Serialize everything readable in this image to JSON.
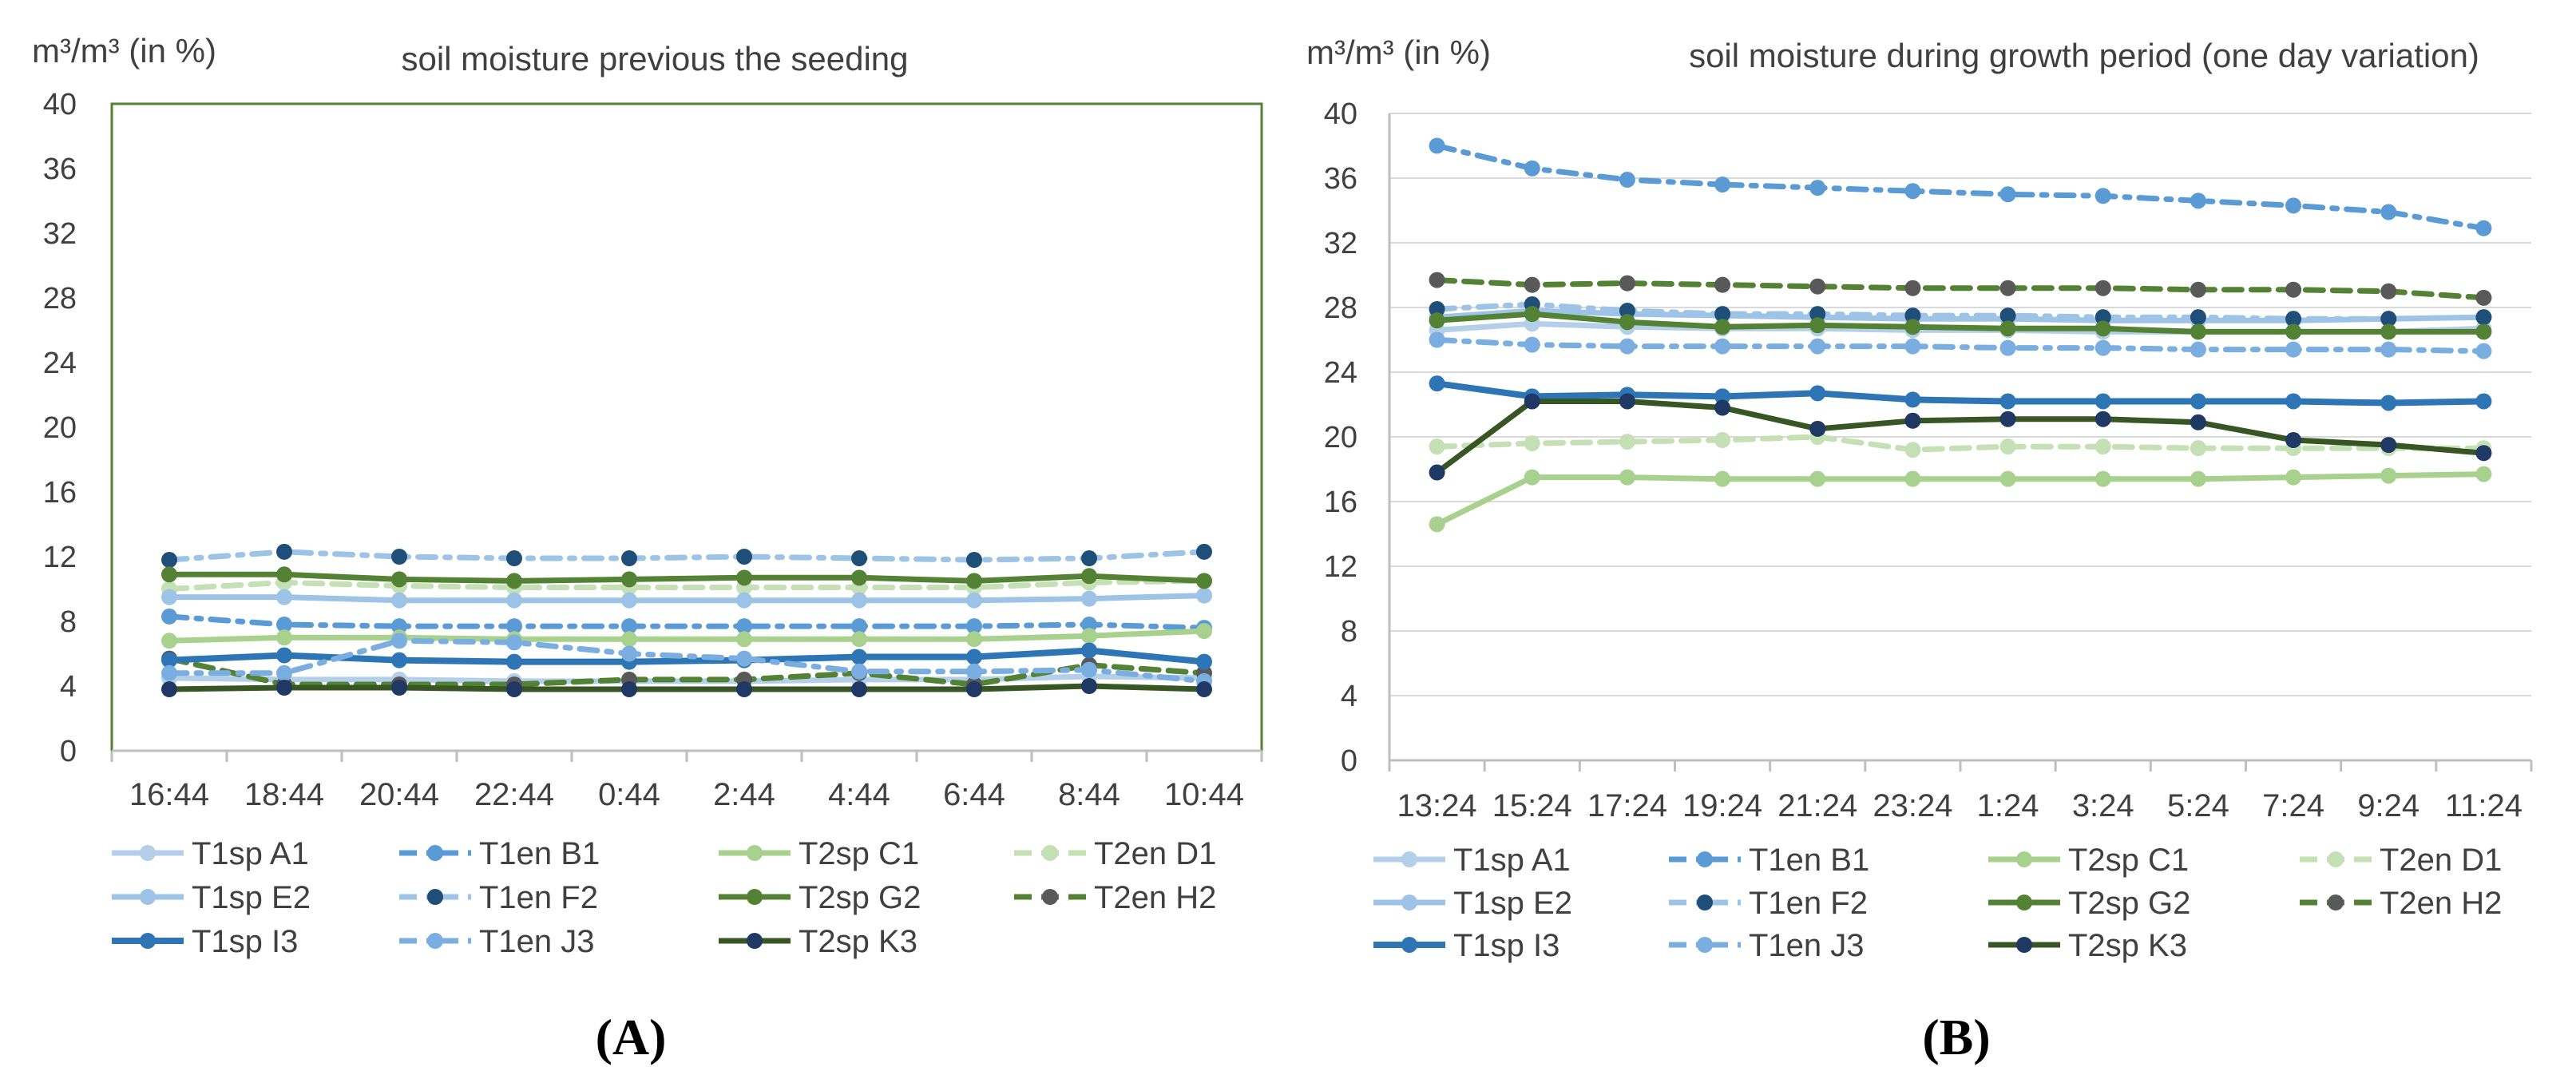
{
  "colors": {
    "T1sp A1": "#b4cfe9",
    "T1en B1": "#5b9bd5",
    "T2sp C1": "#a9d18e",
    "T2en D1": "#c5e0b4",
    "T1sp E2": "#9dc3e6",
    "T1en F2": "#9dc3e6",
    "T2sp G2": "#548235",
    "T2en H2": "#548235",
    "T1sp I3": "#2e75b6",
    "T1en J3": "#7aaee0",
    "T2sp K3": "#375623",
    "marker_F2": "#1f4e79",
    "marker_H2": "#595959",
    "marker_K3": "#1f3864",
    "axis": "#bfbfbf",
    "grid": "#d9d9d9",
    "plot_border": "#548235"
  },
  "chart_data": [
    {
      "panel_label": "(A)",
      "type": "line",
      "title": "soil moisture previous the seeding",
      "ylabel": "m³/m³ (in %)",
      "xlabel": "",
      "ylim": [
        0,
        40
      ],
      "yticks": [
        0,
        4,
        8,
        12,
        16,
        20,
        24,
        28,
        32,
        36,
        40
      ],
      "categories": [
        "16:44",
        "18:44",
        "20:44",
        "22:44",
        "0:44",
        "2:44",
        "4:44",
        "6:44",
        "8:44",
        "10:44"
      ],
      "grid": false,
      "legend": "bottom",
      "series": [
        {
          "name": "T1sp  A1",
          "key": "T1sp A1",
          "values": [
            4.5,
            4.4,
            4.4,
            4.3,
            4.3,
            4.3,
            4.4,
            4.4,
            4.6,
            4.5
          ]
        },
        {
          "name": "T1en B1",
          "key": "T1en B1",
          "values": [
            8.3,
            7.8,
            7.7,
            7.7,
            7.7,
            7.7,
            7.7,
            7.7,
            7.8,
            7.6
          ]
        },
        {
          "name": "T2sp C1",
          "key": "T2sp C1",
          "values": [
            6.8,
            7.0,
            7.0,
            6.9,
            6.9,
            6.9,
            6.9,
            6.9,
            7.1,
            7.4
          ]
        },
        {
          "name": "T2en D1",
          "key": "T2en D1",
          "values": [
            10.0,
            10.4,
            10.2,
            10.1,
            10.1,
            10.1,
            10.1,
            10.1,
            10.4,
            10.5
          ]
        },
        {
          "name": "T1sp E2",
          "key": "T1sp E2",
          "values": [
            9.5,
            9.5,
            9.3,
            9.3,
            9.3,
            9.3,
            9.3,
            9.3,
            9.4,
            9.6
          ]
        },
        {
          "name": "T1en F2",
          "key": "T1en F2",
          "values": [
            11.8,
            12.3,
            12.0,
            11.9,
            11.9,
            12.0,
            11.9,
            11.8,
            11.9,
            12.3
          ]
        },
        {
          "name": "T2sp G2",
          "key": "T2sp G2",
          "values": [
            10.9,
            10.9,
            10.6,
            10.5,
            10.6,
            10.7,
            10.7,
            10.5,
            10.8,
            10.5
          ]
        },
        {
          "name": "T2en H2",
          "key": "T2en H2",
          "values": [
            5.7,
            4.1,
            4.1,
            4.1,
            4.4,
            4.4,
            4.8,
            4.1,
            5.3,
            4.8
          ]
        },
        {
          "name": "T1sp I3",
          "key": "T1sp I3",
          "values": [
            5.6,
            5.9,
            5.6,
            5.5,
            5.5,
            5.6,
            5.8,
            5.8,
            6.2,
            5.5
          ]
        },
        {
          "name": "T1en J3",
          "key": "T1en J3",
          "values": [
            4.8,
            4.8,
            6.8,
            6.7,
            6.0,
            5.7,
            4.9,
            4.9,
            5.0,
            4.3
          ]
        },
        {
          "name": "T2sp K3",
          "key": "T2sp K3",
          "values": [
            3.8,
            3.9,
            3.9,
            3.8,
            3.8,
            3.8,
            3.8,
            3.8,
            4.0,
            3.8
          ]
        }
      ]
    },
    {
      "panel_label": "(B)",
      "type": "line",
      "title": "soil moisture  during growth period (one day variation)",
      "ylabel": "m³/m³ (in %)",
      "xlabel": "",
      "ylim": [
        0,
        40
      ],
      "yticks": [
        0,
        4,
        8,
        12,
        16,
        20,
        24,
        28,
        32,
        36,
        40
      ],
      "categories": [
        "13:24",
        "15:24",
        "17:24",
        "19:24",
        "21:24",
        "23:24",
        "1:24",
        "3:24",
        "5:24",
        "7:24",
        "9:24",
        "11:24"
      ],
      "grid": true,
      "legend": "bottom",
      "series": [
        {
          "name": "T1sp  A1",
          "key": "T1sp A1",
          "values": [
            26.6,
            27.0,
            26.8,
            26.7,
            26.7,
            26.6,
            26.6,
            26.5,
            26.5,
            26.5,
            26.5,
            26.7
          ]
        },
        {
          "name": "T1en B1",
          "key": "T1en B1",
          "values": [
            38.0,
            36.6,
            35.9,
            35.6,
            35.4,
            35.2,
            35.0,
            34.9,
            34.6,
            34.3,
            33.9,
            32.9
          ]
        },
        {
          "name": "T2sp C1",
          "key": "T2sp C1",
          "values": [
            14.6,
            17.5,
            17.5,
            17.4,
            17.4,
            17.4,
            17.4,
            17.4,
            17.4,
            17.5,
            17.6,
            17.7
          ]
        },
        {
          "name": "T2en D1",
          "key": "T2en D1",
          "values": [
            19.4,
            19.6,
            19.7,
            19.8,
            20.0,
            19.2,
            19.4,
            19.4,
            19.3,
            19.3,
            19.3,
            19.3
          ]
        },
        {
          "name": "T1sp E2",
          "key": "T1sp E2",
          "values": [
            27.4,
            27.8,
            27.6,
            27.5,
            27.4,
            27.3,
            27.3,
            27.2,
            27.2,
            27.2,
            27.3,
            27.4
          ]
        },
        {
          "name": "T1en F2",
          "key": "T1en F2",
          "values": [
            27.9,
            28.2,
            27.8,
            27.6,
            27.6,
            27.5,
            27.5,
            27.4,
            27.4,
            27.3,
            27.3,
            27.4
          ]
        },
        {
          "name": "T2sp G2",
          "key": "T2sp G2",
          "values": [
            27.2,
            27.6,
            27.1,
            26.8,
            26.9,
            26.8,
            26.7,
            26.7,
            26.5,
            26.5,
            26.5,
            26.5
          ]
        },
        {
          "name": "T2en H2",
          "key": "T2en H2",
          "values": [
            29.7,
            29.4,
            29.5,
            29.4,
            29.3,
            29.2,
            29.2,
            29.2,
            29.1,
            29.1,
            29.0,
            28.6
          ]
        },
        {
          "name": "T1sp I3",
          "key": "T1sp I3",
          "values": [
            23.3,
            22.5,
            22.6,
            22.5,
            22.7,
            22.3,
            22.2,
            22.2,
            22.2,
            22.2,
            22.1,
            22.2
          ]
        },
        {
          "name": "T1en J3",
          "key": "T1en J3",
          "values": [
            26.0,
            25.7,
            25.6,
            25.6,
            25.6,
            25.6,
            25.5,
            25.5,
            25.4,
            25.4,
            25.4,
            25.3
          ]
        },
        {
          "name": "T2sp K3",
          "key": "T2sp K3",
          "values": [
            17.8,
            22.2,
            22.2,
            21.8,
            20.5,
            21.0,
            21.1,
            21.1,
            20.9,
            19.8,
            19.5,
            19.0
          ]
        }
      ]
    }
  ]
}
